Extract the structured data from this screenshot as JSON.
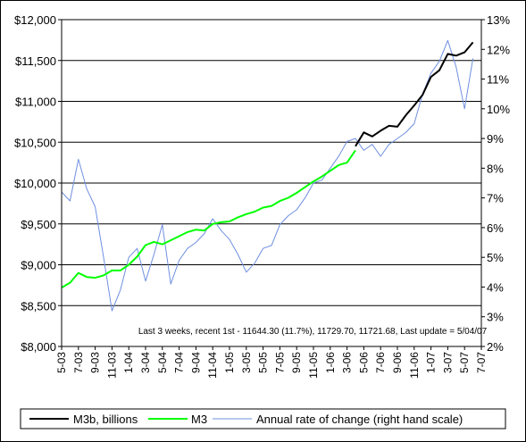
{
  "chart_data": {
    "type": "line",
    "title": "",
    "xlabel": "",
    "ylabel": "",
    "ylim": [
      8000,
      12000
    ],
    "y2lim": [
      2,
      13
    ],
    "y_ticks": [
      "$8,000",
      "$8,500",
      "$9,000",
      "$9,500",
      "$10,000",
      "$10,500",
      "$11,000",
      "$11,500",
      "$12,000"
    ],
    "y2_ticks": [
      "2%",
      "3%",
      "4%",
      "5%",
      "6%",
      "7%",
      "8%",
      "9%",
      "10%",
      "11%",
      "12%",
      "13%"
    ],
    "x_ticks": [
      "5-03",
      "7-03",
      "9-03",
      "11-03",
      "1-04",
      "3-04",
      "5-04",
      "7-04",
      "9-04",
      "11-04",
      "1-05",
      "3-05",
      "5-05",
      "7-05",
      "9-05",
      "11-05",
      "1-06",
      "3-06",
      "5-06",
      "7-06",
      "9-06",
      "11-06",
      "1-07",
      "3-07",
      "5-07",
      "7-07"
    ],
    "grid": "horizontal",
    "legend_position": "bottom",
    "annotation": "Last 3 weeks, recent 1st - 11644.30 (11.7%), 11729.70, 11721.68, Last update = 5/04/07",
    "colors": {
      "m3b": "#000000",
      "m3": "#00ff00",
      "rate": "#6f8fdf"
    },
    "series": [
      {
        "name": "M3b, billions",
        "axis": "left",
        "x_month_index": [
          35,
          36,
          37,
          38,
          39,
          40,
          41,
          42,
          43,
          44,
          45,
          46,
          47,
          48,
          49
        ],
        "values": [
          10450,
          10620,
          10570,
          10640,
          10700,
          10690,
          10830,
          10950,
          11080,
          11300,
          11380,
          11580,
          11560,
          11600,
          11722
        ]
      },
      {
        "name": "M3",
        "axis": "left",
        "x_month_index": [
          0,
          1,
          2,
          3,
          4,
          5,
          6,
          7,
          8,
          9,
          10,
          11,
          12,
          13,
          14,
          15,
          16,
          17,
          18,
          19,
          20,
          21,
          22,
          23,
          24,
          25,
          26,
          27,
          28,
          29,
          30,
          31,
          32,
          33,
          34,
          35
        ],
        "values": [
          8720,
          8780,
          8900,
          8850,
          8840,
          8870,
          8930,
          8930,
          9000,
          9100,
          9240,
          9280,
          9250,
          9300,
          9350,
          9400,
          9430,
          9420,
          9500,
          9520,
          9530,
          9580,
          9620,
          9650,
          9700,
          9720,
          9780,
          9820,
          9880,
          9950,
          10020,
          10080,
          10150,
          10220,
          10250,
          10400
        ]
      },
      {
        "name": "Annual rate of change (right hand scale)",
        "axis": "right",
        "x_month_index": [
          0,
          1,
          2,
          3,
          4,
          5,
          6,
          7,
          8,
          9,
          10,
          11,
          12,
          13,
          14,
          15,
          16,
          17,
          18,
          19,
          20,
          21,
          22,
          23,
          24,
          25,
          26,
          27,
          28,
          29,
          30,
          31,
          32,
          33,
          34,
          35,
          36,
          37,
          38,
          39,
          40,
          41,
          42,
          43,
          44,
          45,
          46,
          47,
          48,
          49
        ],
        "values": [
          7.2,
          6.9,
          8.3,
          7.3,
          6.7,
          5.0,
          3.2,
          3.9,
          5.0,
          5.3,
          4.2,
          5.1,
          6.1,
          4.1,
          4.9,
          5.3,
          5.5,
          5.8,
          6.3,
          5.9,
          5.6,
          5.1,
          4.5,
          4.8,
          5.3,
          5.4,
          6.1,
          6.4,
          6.6,
          7.0,
          7.5,
          7.6,
          8.0,
          8.4,
          8.9,
          9.0,
          8.6,
          8.8,
          8.4,
          8.8,
          9.0,
          9.2,
          9.5,
          10.5,
          11.2,
          11.6,
          12.3,
          11.4,
          10.0,
          11.7
        ]
      }
    ]
  }
}
